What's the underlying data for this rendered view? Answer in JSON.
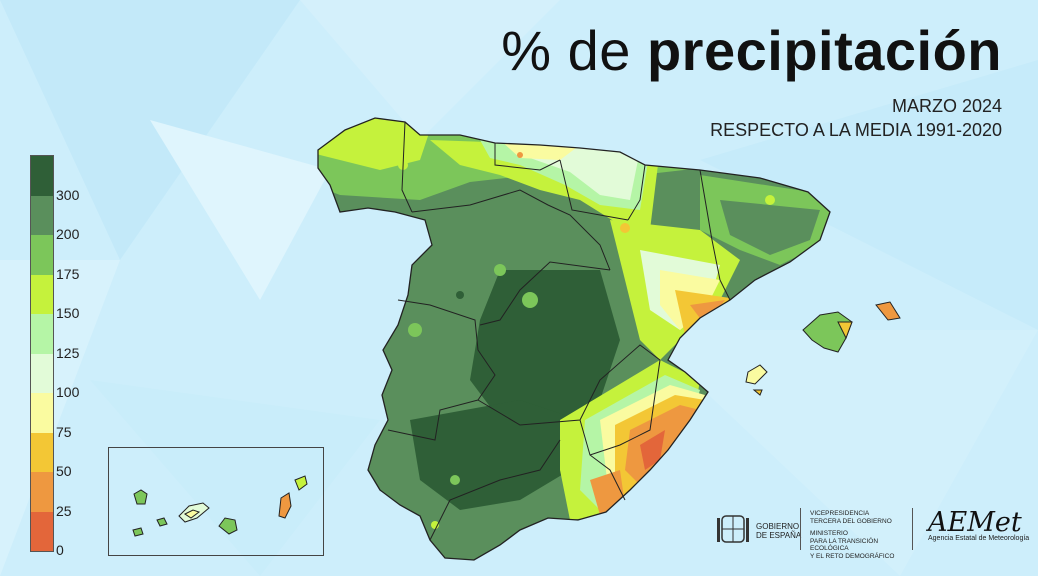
{
  "title": {
    "light": "% de ",
    "bold": "precipitación"
  },
  "subtitle1": "MARZO 2024",
  "subtitle2": "RESPECTO A LA MEDIA 1991-2020",
  "legend": {
    "bands": [
      {
        "color": "#2f5f37"
      },
      {
        "color": "#5a8f5c"
      },
      {
        "color": "#7cc65a"
      },
      {
        "color": "#c5f23c"
      },
      {
        "color": "#b5f5a6"
      },
      {
        "color": "#e2fbd8"
      },
      {
        "color": "#fafba0"
      },
      {
        "color": "#f3c735"
      },
      {
        "color": "#ee9840"
      },
      {
        "color": "#e3663a"
      }
    ],
    "labels": [
      "300",
      "200",
      "175",
      "150",
      "125",
      "100",
      "75",
      "50",
      "25",
      "0"
    ]
  },
  "logos": {
    "gobierno": "GOBIERNO\nDE ESPAÑA",
    "vice1": "VICEPRESIDENCIA",
    "vice2": "TERCERA DEL GOBIERNO",
    "min1": "MINISTERIO",
    "min2": "PARA LA TRANSICIÓN ECOLÓGICA",
    "min3": "Y EL RETO DEMOGRÁFICO",
    "aemet": "AEMet",
    "aemet_full": "Agencia Estatal de Meteorología"
  }
}
